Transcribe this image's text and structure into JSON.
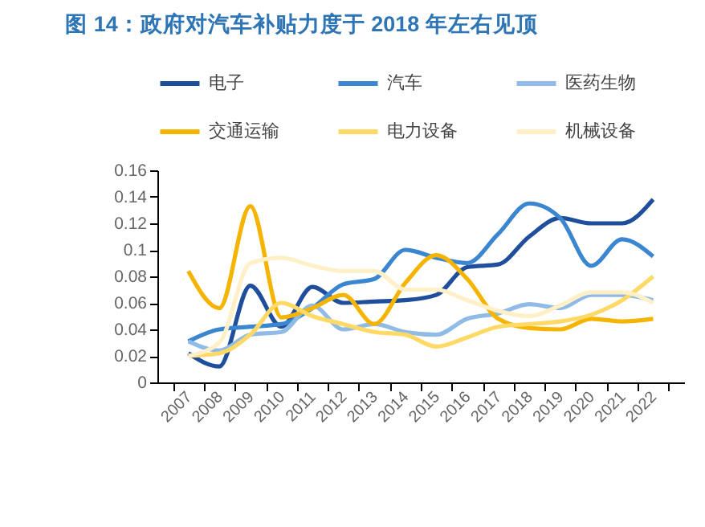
{
  "chart_data": {
    "type": "line",
    "title": "图 14：政府对汽车补贴力度于 2018 年左右见顶",
    "categories": [
      "2007",
      "2008",
      "2009",
      "2010",
      "2011",
      "2012",
      "2013",
      "2014",
      "2015",
      "2016",
      "2017",
      "2018",
      "2019",
      "2020",
      "2021",
      "2022"
    ],
    "series": [
      {
        "name": "电子",
        "color": "#1f4e9c",
        "values": [
          0.022,
          0.012,
          0.073,
          0.042,
          0.072,
          0.06,
          0.061,
          0.062,
          0.066,
          0.087,
          0.089,
          0.11,
          0.124,
          0.12,
          0.12,
          0.138
        ]
      },
      {
        "name": "汽车",
        "color": "#3a86d0",
        "values": [
          0.031,
          0.04,
          0.042,
          0.044,
          0.056,
          0.074,
          0.078,
          0.1,
          0.094,
          0.09,
          0.112,
          0.135,
          0.124,
          0.088,
          0.108,
          0.095
        ]
      },
      {
        "name": "医药生物",
        "color": "#8fbbe6",
        "values": [
          0.031,
          0.024,
          0.036,
          0.038,
          0.058,
          0.04,
          0.044,
          0.038,
          0.036,
          0.048,
          0.052,
          0.059,
          0.056,
          0.066,
          0.066,
          0.062
        ]
      },
      {
        "name": "交通运输",
        "color": "#f5b400",
        "values": [
          0.084,
          0.056,
          0.133,
          0.049,
          0.056,
          0.066,
          0.044,
          0.075,
          0.096,
          0.078,
          0.048,
          0.041,
          0.04,
          0.048,
          0.046,
          0.048
        ]
      },
      {
        "name": "电力设备",
        "color": "#ffd966",
        "values": [
          0.02,
          0.022,
          0.036,
          0.06,
          0.05,
          0.044,
          0.038,
          0.036,
          0.027,
          0.034,
          0.042,
          0.044,
          0.046,
          0.051,
          0.062,
          0.08
        ]
      },
      {
        "name": "机械设备",
        "color": "#fff0c8",
        "values": [
          0.02,
          0.03,
          0.09,
          0.094,
          0.088,
          0.084,
          0.084,
          0.07,
          0.07,
          0.062,
          0.054,
          0.05,
          0.058,
          0.068,
          0.068,
          0.06
        ]
      }
    ],
    "ylim": [
      0,
      0.16
    ],
    "yticks": [
      0,
      0.02,
      0.04,
      0.06,
      0.08,
      0.1,
      0.12,
      0.14,
      0.16
    ],
    "grid": false,
    "legend": "top",
    "line_style": "solid",
    "marker": "none"
  }
}
